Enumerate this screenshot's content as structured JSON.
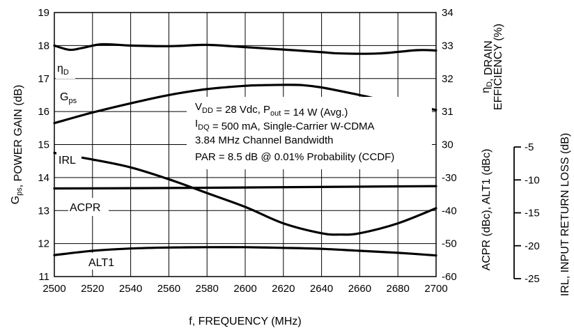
{
  "chart_data": {
    "type": "line",
    "xlabel": "f, FREQUENCY (MHz)",
    "x": [
      2500,
      2520,
      2540,
      2560,
      2580,
      2600,
      2620,
      2640,
      2660,
      2680,
      2700
    ],
    "xlim": [
      2500,
      2700
    ],
    "x_ticks": [
      "2500",
      "2520",
      "2540",
      "2560",
      "2580",
      "2600",
      "2620",
      "2640",
      "2660",
      "2680",
      "2700"
    ],
    "grid": true,
    "axes": {
      "left": {
        "label_main": "G",
        "label_sub": "ps",
        "label_rest": ", POWER GAIN (dB)",
        "lim": [
          11,
          19
        ],
        "ticks": [
          "11",
          "12",
          "13",
          "14",
          "15",
          "16",
          "17",
          "18",
          "19"
        ]
      },
      "right_upper": {
        "label_line1_main": "η",
        "label_line1_sub": "D",
        "label_line1_rest": ", DRAIN",
        "label_line2": "EFFICIENCY (%)",
        "lim": [
          30,
          34
        ],
        "ticks": [
          "30",
          "31",
          "32",
          "33",
          "34"
        ]
      },
      "right_lower": {
        "label": "ACPR (dBc), ALT1 (dBc)",
        "lim": [
          -60,
          -30
        ],
        "ticks": [
          "-30",
          "-40",
          "-50",
          "-60"
        ]
      },
      "far_right": {
        "label": "IRL, INPUT RETURN LOSS (dB)",
        "lim": [
          -25,
          -5
        ],
        "ticks": [
          "-5",
          "-10",
          "-15",
          "-20",
          "-25"
        ]
      }
    },
    "series": [
      {
        "name": "η",
        "name_sub": "D",
        "axis": "right_upper",
        "x": [
          2500,
          2508,
          2515,
          2525,
          2540,
          2560,
          2580,
          2600,
          2620,
          2640,
          2650,
          2670,
          2690,
          2700
        ],
        "values": [
          33.0,
          32.87,
          32.93,
          33.04,
          33.0,
          32.98,
          33.02,
          32.95,
          32.88,
          32.8,
          32.76,
          32.76,
          32.86,
          32.85
        ]
      },
      {
        "name": "G",
        "name_sub": "ps",
        "axis": "left",
        "x": [
          2500,
          2520,
          2540,
          2560,
          2580,
          2600,
          2610,
          2620,
          2630,
          2640,
          2660,
          2680,
          2700
        ],
        "values": [
          15.65,
          15.97,
          16.25,
          16.5,
          16.68,
          16.78,
          16.8,
          16.81,
          16.8,
          16.73,
          16.5,
          16.25,
          16.05
        ]
      },
      {
        "name": "IRL",
        "axis": "far_right",
        "x": [
          2500,
          2520,
          2540,
          2560,
          2580,
          2600,
          2620,
          2640,
          2650,
          2660,
          2680,
          2700
        ],
        "values": [
          -5.9,
          -6.9,
          -8.1,
          -9.9,
          -12.0,
          -14.1,
          -16.6,
          -18.1,
          -18.3,
          -18.1,
          -16.6,
          -14.3
        ]
      },
      {
        "name": "ACPR",
        "axis": "right_lower",
        "x": [
          2500,
          2550,
          2600,
          2650,
          2700
        ],
        "values": [
          -33.3,
          -33.2,
          -33.0,
          -32.8,
          -32.6
        ]
      },
      {
        "name": "ALT1",
        "axis": "right_lower",
        "x": [
          2500,
          2520,
          2540,
          2560,
          2580,
          2600,
          2620,
          2640,
          2660,
          2680,
          2700
        ],
        "values": [
          -53.5,
          -52.2,
          -51.5,
          -51.2,
          -51.1,
          -51.1,
          -51.3,
          -51.6,
          -52.2,
          -52.8,
          -53.6
        ]
      }
    ],
    "annotations": [
      {
        "parts": [
          {
            "t": "V"
          },
          {
            "t": "DD",
            "sub": true
          },
          {
            "t": " = 28 Vdc, P"
          },
          {
            "t": "out",
            "sub": true
          },
          {
            "t": " = 14 W (Avg.)"
          }
        ]
      },
      {
        "parts": [
          {
            "t": "I"
          },
          {
            "t": "DQ",
            "sub": true
          },
          {
            "t": " = 500 mA, Single-Carrier W-CDMA"
          }
        ]
      },
      {
        "parts": [
          {
            "t": "3.84 MHz Channel Bandwidth"
          }
        ]
      },
      {
        "parts": [
          {
            "t": "PAR = 8.5 dB @ 0.01% Probability (CCDF)"
          }
        ]
      }
    ]
  }
}
